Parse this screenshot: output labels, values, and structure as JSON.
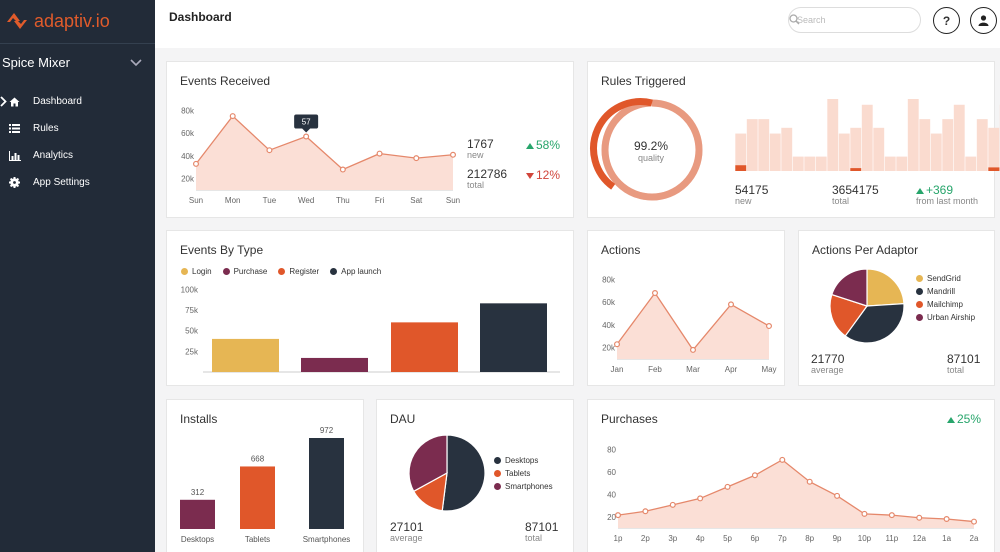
{
  "app": {
    "brand": "adaptiv.io",
    "brand_color": "#e05b2b",
    "selected_app": "Spice Mixer"
  },
  "nav": [
    {
      "label": "Dashboard",
      "icon": "home-icon",
      "active": true
    },
    {
      "label": "Rules",
      "icon": "list-icon"
    },
    {
      "label": "Analytics",
      "icon": "bar-chart-icon"
    },
    {
      "label": "App Settings",
      "icon": "gear-icon"
    }
  ],
  "header": {
    "title": "Dashboard",
    "search_placeholder": "Search",
    "help": "?",
    "user_icon": "user-icon"
  },
  "colors": {
    "orange": "#e0572a",
    "line": "#e5886b",
    "fill": "#fbdfd6",
    "navy": "#28323f",
    "plum": "#7b2c4f",
    "yellow": "#e6b654",
    "green": "#27a56b",
    "red": "#d1453b"
  },
  "events_received": {
    "title": "Events Received",
    "tooltip": "57",
    "new_value": "1767",
    "new_label": "new",
    "new_change": "58%",
    "new_dir": "up",
    "total_value": "212786",
    "total_label": "total",
    "total_change": "12%",
    "total_dir": "down",
    "chart_data": {
      "type": "area",
      "x": [
        "Sun",
        "Mon",
        "Tue",
        "Wed",
        "Thu",
        "Fri",
        "Sat",
        "Sun"
      ],
      "y": [
        33,
        75,
        45,
        57,
        28,
        42,
        38,
        41
      ],
      "yticks": [
        "80k",
        "60k",
        "40k",
        "20k"
      ],
      "ylim": [
        10,
        90
      ]
    }
  },
  "rules_triggered": {
    "title": "Rules Triggered",
    "quality_pct": "99.2%",
    "quality_label": "quality",
    "quality_value": 99.2,
    "new_value": "54175",
    "new_label": "new",
    "total_value": "3654175",
    "total_label": "total",
    "change": "+369",
    "change_label": "from last month",
    "chart_data": {
      "type": "bar",
      "series": [
        {
          "name": "",
          "values": [
            52,
            72,
            72,
            52,
            60,
            20,
            20,
            20,
            100,
            52,
            60,
            92,
            60,
            20,
            20,
            100,
            72,
            52,
            72,
            92,
            20,
            72,
            60,
            92
          ]
        },
        {
          "name": "",
          "values": [
            8,
            0,
            0,
            0,
            0,
            0,
            0,
            0,
            0,
            0,
            4,
            0,
            0,
            0,
            0,
            0,
            0,
            0,
            0,
            0,
            0,
            0,
            5,
            5
          ]
        }
      ]
    }
  },
  "events_by_type": {
    "title": "Events By Type",
    "chart_data": {
      "type": "bar",
      "categories": [
        "Login",
        "Purchase",
        "Register",
        "App launch"
      ],
      "values": [
        40,
        17,
        60,
        83
      ],
      "yticks": [
        "100k",
        "75k",
        "50k",
        "25k"
      ],
      "ylim": [
        0,
        110
      ]
    }
  },
  "actions": {
    "title": "Actions",
    "chart_data": {
      "type": "area",
      "x": [
        "Jan",
        "Feb",
        "Mar",
        "Apr",
        "May"
      ],
      "y": [
        23,
        68,
        18,
        58,
        39
      ],
      "yticks": [
        "80k",
        "60k",
        "40k",
        "20k"
      ],
      "ylim": [
        10,
        90
      ]
    }
  },
  "actions_per_adaptor": {
    "title": "Actions Per Adaptor",
    "avg_value": "21770",
    "avg_label": "average",
    "total_value": "87101",
    "total_label": "total",
    "chart_data": {
      "type": "pie",
      "labels": [
        "SendGrid",
        "Mandrill",
        "Mailchimp",
        "Urban Airship"
      ],
      "values": [
        24,
        36,
        20,
        20
      ]
    }
  },
  "installs": {
    "title": "Installs",
    "chart_data": {
      "type": "bar",
      "categories": [
        "Desktops",
        "Tablets",
        "Smartphones"
      ],
      "values": [
        312,
        668,
        972
      ]
    }
  },
  "dau": {
    "title": "DAU",
    "avg_value": "27101",
    "avg_label": "average",
    "total_value": "87101",
    "total_label": "total",
    "chart_data": {
      "type": "pie",
      "labels": [
        "Desktops",
        "Tablets",
        "Smartphones"
      ],
      "values": [
        52,
        15,
        33
      ]
    }
  },
  "purchases": {
    "title": "Purchases",
    "change": "25%",
    "chart_data": {
      "type": "area",
      "x": [
        "1p",
        "2p",
        "3p",
        "4p",
        "5p",
        "6p",
        "7p",
        "8p",
        "9p",
        "10p",
        "11p",
        "12a",
        "1a",
        "2a"
      ],
      "y": [
        25,
        28,
        33,
        38,
        47,
        56,
        68,
        51,
        40,
        26,
        25,
        23,
        22,
        20
      ],
      "yticks": [
        "80",
        "60",
        "40",
        "20"
      ],
      "ylim": [
        15,
        85
      ]
    }
  }
}
